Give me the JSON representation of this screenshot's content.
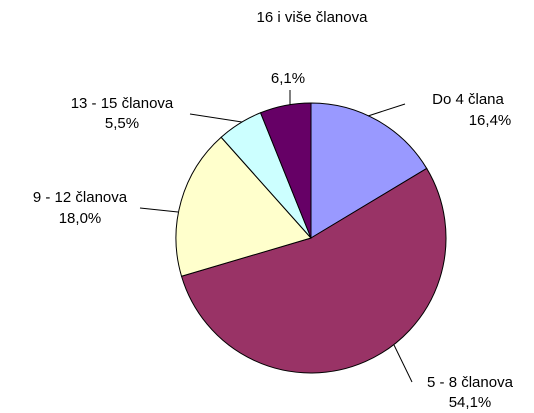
{
  "chart_data": {
    "type": "pie",
    "categories": [
      "Do 4 člana",
      "5 - 8 članova",
      "9 - 12 članova",
      "13 - 15 članova",
      "16 i više članova"
    ],
    "values": [
      16.4,
      54.1,
      18.0,
      5.5,
      6.1
    ],
    "value_labels": [
      "16,4%",
      "54,1%",
      "18,0%",
      "5,5%",
      "6,1%"
    ],
    "colors": [
      "#9999ff",
      "#993366",
      "#ffffcc",
      "#ccffff",
      "#660066"
    ]
  }
}
